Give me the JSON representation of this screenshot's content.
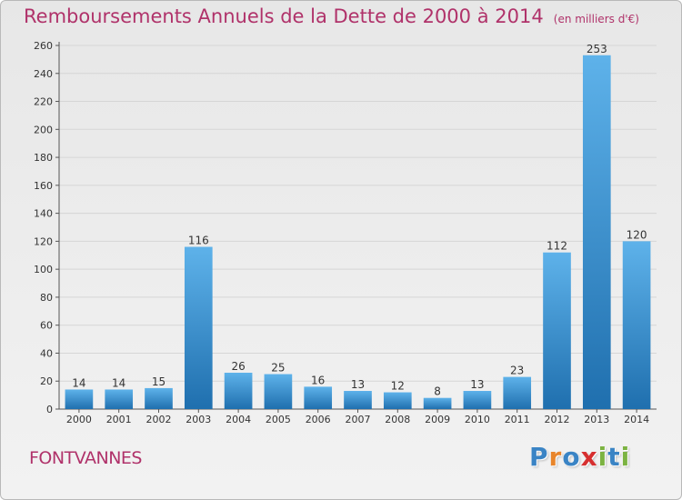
{
  "title": "Remboursements Annuels de la Dette de 2000 à 2014",
  "subtitle": "(en milliers d'€)",
  "town": "FONTVANNES",
  "logo": {
    "letters": [
      "P",
      "r",
      "o",
      "x",
      "i",
      "t",
      "i"
    ],
    "colors": [
      "#3a84c5",
      "#e8852b",
      "#3a84c5",
      "#d62f2f",
      "#7cb342",
      "#3a84c5",
      "#7cb342"
    ]
  },
  "colors": {
    "bar_light": "#5eb2ea",
    "bar_dark": "#1f6fae",
    "title": "#b0326a",
    "grid": "#d6d6d6"
  },
  "chart_data": {
    "type": "bar",
    "title": "Remboursements Annuels de la Dette de 2000 à 2014",
    "xlabel": "",
    "ylabel": "en milliers d'€",
    "categories": [
      "2000",
      "2001",
      "2002",
      "2003",
      "2004",
      "2005",
      "2006",
      "2007",
      "2008",
      "2009",
      "2010",
      "2011",
      "2012",
      "2013",
      "2014"
    ],
    "values": [
      14,
      14,
      15,
      116,
      26,
      25,
      16,
      13,
      12,
      8,
      13,
      23,
      112,
      253,
      120
    ],
    "ylim": [
      0,
      260
    ],
    "yticks": [
      0,
      20,
      40,
      60,
      80,
      100,
      120,
      140,
      160,
      180,
      200,
      220,
      240,
      260
    ],
    "grid": true
  }
}
